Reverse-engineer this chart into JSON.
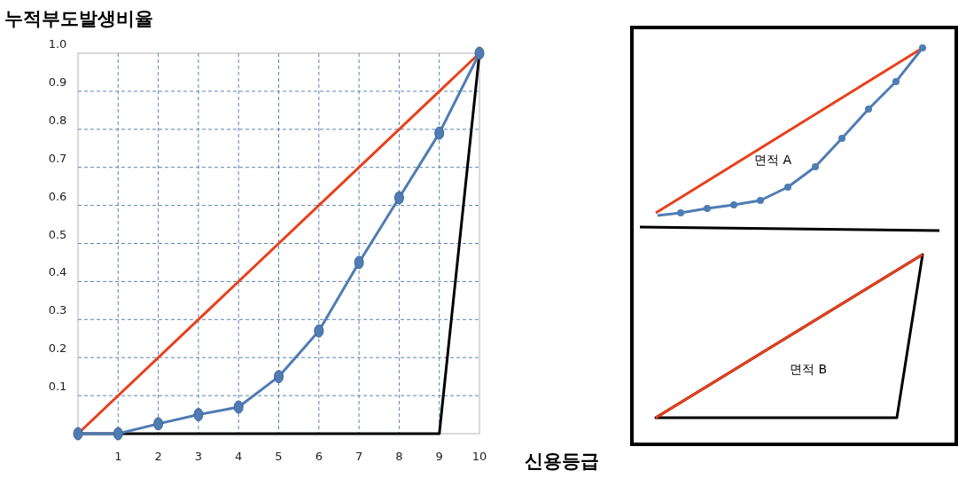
{
  "chart_data": {
    "type": "line",
    "title": "누적부도발생비율",
    "xlabel": "신용등급",
    "xlim": [
      0,
      10
    ],
    "ylim": [
      0,
      1
    ],
    "xticks": [
      1,
      2,
      3,
      4,
      5,
      6,
      7,
      8,
      9,
      10
    ],
    "yticks": [
      0.1,
      0.2,
      0.3,
      0.4,
      0.5,
      0.6,
      0.7,
      0.8,
      0.9,
      {
        "value": 1,
        "label": "1.0"
      }
    ],
    "grid": true,
    "line_style": "solid",
    "series": [
      {
        "color": "#e8401c",
        "x": [
          0,
          10
        ],
        "values": [
          0,
          1
        ],
        "marker": "none"
      },
      {
        "color": "#000000",
        "x": [
          0,
          9,
          10
        ],
        "values": [
          0,
          0,
          1
        ],
        "marker": "none"
      },
      {
        "color": "#4f7cb3",
        "x": [
          0,
          1,
          2,
          3,
          4,
          5,
          6,
          7,
          8,
          9,
          10
        ],
        "values": [
          0,
          0,
          0.026,
          0.05,
          0.07,
          0.15,
          0.27,
          0.45,
          0.62,
          0.79,
          1
        ],
        "marker": "circle"
      }
    ],
    "annotations": [
      "면적 A",
      "면적 B"
    ]
  }
}
